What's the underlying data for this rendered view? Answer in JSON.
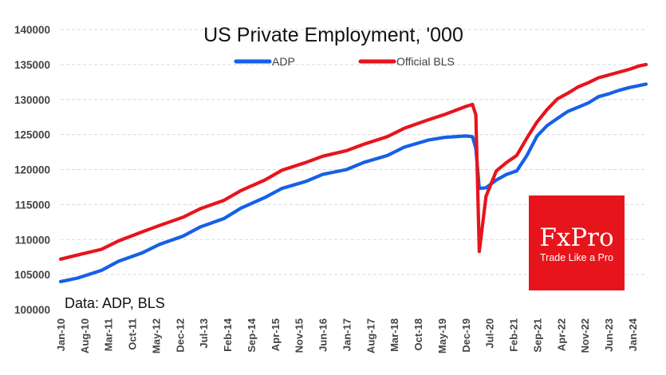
{
  "chart_data": {
    "type": "line",
    "title": "US Private Employment, '000",
    "source_note": "Data: ADP, BLS",
    "ylim": [
      100000,
      140000
    ],
    "yticks": [
      100000,
      105000,
      110000,
      115000,
      120000,
      125000,
      130000,
      135000,
      140000
    ],
    "xticks": [
      "Jan-10",
      "Aug-10",
      "Mar-11",
      "Oct-11",
      "May-12",
      "Dec-12",
      "Jul-13",
      "Feb-14",
      "Sep-14",
      "Apr-15",
      "Nov-15",
      "Jun-16",
      "Jan-17",
      "Aug-17",
      "Mar-18",
      "Oct-18",
      "May-19",
      "Dec-19",
      "Jul-20",
      "Feb-21",
      "Sep-21",
      "Apr-22",
      "Nov-22",
      "Jun-23",
      "Jan-24"
    ],
    "x_start": "2010-01",
    "x_end": "2024-05",
    "legend_position": "top-center",
    "grid": true,
    "series": [
      {
        "name": "ADP",
        "color": "#1560e8",
        "points": [
          [
            "2010-01",
            104000
          ],
          [
            "2010-06",
            104500
          ],
          [
            "2011-01",
            105600
          ],
          [
            "2011-06",
            106900
          ],
          [
            "2012-01",
            108100
          ],
          [
            "2012-06",
            109300
          ],
          [
            "2013-01",
            110500
          ],
          [
            "2013-06",
            111800
          ],
          [
            "2014-01",
            113000
          ],
          [
            "2014-06",
            114500
          ],
          [
            "2015-01",
            116000
          ],
          [
            "2015-06",
            117300
          ],
          [
            "2016-01",
            118300
          ],
          [
            "2016-06",
            119300
          ],
          [
            "2017-01",
            120000
          ],
          [
            "2017-06",
            121000
          ],
          [
            "2018-01",
            122000
          ],
          [
            "2018-06",
            123200
          ],
          [
            "2019-01",
            124200
          ],
          [
            "2019-06",
            124600
          ],
          [
            "2019-12",
            124800
          ],
          [
            "2020-02",
            124700
          ],
          [
            "2020-03",
            123000
          ],
          [
            "2020-04",
            117300
          ],
          [
            "2020-06",
            117400
          ],
          [
            "2020-09",
            118500
          ],
          [
            "2020-12",
            119300
          ],
          [
            "2021-03",
            119800
          ],
          [
            "2021-06",
            122000
          ],
          [
            "2021-09",
            124800
          ],
          [
            "2021-12",
            126300
          ],
          [
            "2022-03",
            127300
          ],
          [
            "2022-06",
            128300
          ],
          [
            "2022-09",
            128900
          ],
          [
            "2022-12",
            129500
          ],
          [
            "2023-03",
            130400
          ],
          [
            "2023-06",
            130800
          ],
          [
            "2023-09",
            131300
          ],
          [
            "2023-12",
            131700
          ],
          [
            "2024-03",
            132000
          ],
          [
            "2024-05",
            132200
          ]
        ]
      },
      {
        "name": "Official BLS",
        "color": "#e8141c",
        "points": [
          [
            "2010-01",
            107200
          ],
          [
            "2010-06",
            107800
          ],
          [
            "2011-01",
            108600
          ],
          [
            "2011-06",
            109800
          ],
          [
            "2012-01",
            111100
          ],
          [
            "2012-06",
            112000
          ],
          [
            "2013-01",
            113200
          ],
          [
            "2013-06",
            114400
          ],
          [
            "2014-01",
            115600
          ],
          [
            "2014-06",
            117000
          ],
          [
            "2015-01",
            118500
          ],
          [
            "2015-06",
            119900
          ],
          [
            "2016-01",
            121000
          ],
          [
            "2016-06",
            121900
          ],
          [
            "2017-01",
            122700
          ],
          [
            "2017-06",
            123600
          ],
          [
            "2018-01",
            124700
          ],
          [
            "2018-06",
            125900
          ],
          [
            "2019-01",
            127100
          ],
          [
            "2019-06",
            127900
          ],
          [
            "2019-12",
            129000
          ],
          [
            "2020-02",
            129300
          ],
          [
            "2020-03",
            127800
          ],
          [
            "2020-04",
            108300
          ],
          [
            "2020-06",
            116200
          ],
          [
            "2020-09",
            119800
          ],
          [
            "2020-12",
            121000
          ],
          [
            "2021-03",
            122000
          ],
          [
            "2021-06",
            124500
          ],
          [
            "2021-09",
            126800
          ],
          [
            "2021-12",
            128600
          ],
          [
            "2022-03",
            130100
          ],
          [
            "2022-06",
            130900
          ],
          [
            "2022-09",
            131800
          ],
          [
            "2022-12",
            132400
          ],
          [
            "2023-03",
            133100
          ],
          [
            "2023-06",
            133500
          ],
          [
            "2023-09",
            133900
          ],
          [
            "2023-12",
            134300
          ],
          [
            "2024-03",
            134800
          ],
          [
            "2024-05",
            135000
          ]
        ]
      }
    ]
  },
  "logo": {
    "brand": "FxPro",
    "tagline": "Trade Like a Pro",
    "background": "#e8141c"
  }
}
